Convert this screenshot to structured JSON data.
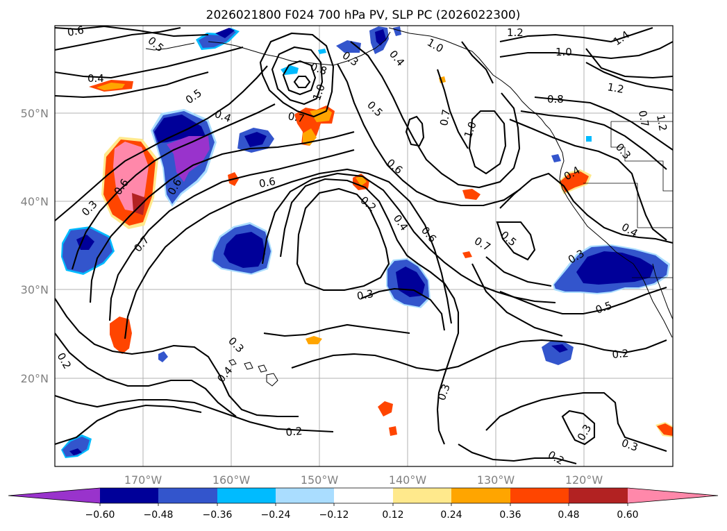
{
  "title": "2026021800 F024 700 hPa PV, SLP PC (2026022300)",
  "lon_labels": [
    "170°W",
    "160°W",
    "150°W",
    "140°W",
    "130°W",
    "120°W"
  ],
  "lat_labels": [
    "50°N",
    "40°N",
    "30°N",
    "20°N"
  ],
  "colorbar": {
    "tick_labels": [
      "−0.60",
      "−0.48",
      "−0.36",
      "−0.24",
      "−0.12",
      "0.12",
      "0.24",
      "0.36",
      "0.48",
      "0.60"
    ],
    "colors": [
      "#9933cc",
      "#000099",
      "#3355cc",
      "#00bbff",
      "#aaddff",
      "#ffffff",
      "#ffe98c",
      "#ffa500",
      "#ff4500",
      "#b22222",
      "#ff88aa"
    ]
  },
  "contour_labels": [
    {
      "id": "c1",
      "text": "0.6"
    },
    {
      "id": "c2",
      "text": "0.5"
    },
    {
      "id": "c3",
      "text": "0.4"
    },
    {
      "id": "c4",
      "text": "0.5"
    },
    {
      "id": "c5",
      "text": "0.4"
    },
    {
      "id": "c6",
      "text": "0.8"
    },
    {
      "id": "c7",
      "text": "1.0"
    },
    {
      "id": "c8",
      "text": "0.7"
    },
    {
      "id": "c9",
      "text": "0.3"
    },
    {
      "id": "c10",
      "text": "0.4"
    },
    {
      "id": "c11",
      "text": "0.5"
    },
    {
      "id": "c12",
      "text": "1.2"
    },
    {
      "id": "c13",
      "text": "1.0"
    },
    {
      "id": "c14",
      "text": "1.0"
    },
    {
      "id": "c15",
      "text": "1.4"
    },
    {
      "id": "c16",
      "text": "1.2"
    },
    {
      "id": "c17",
      "text": "0.8"
    },
    {
      "id": "c18",
      "text": "0.7"
    },
    {
      "id": "c19",
      "text": "1.0"
    },
    {
      "id": "c20",
      "text": "0.6"
    },
    {
      "id": "c21",
      "text": "0.6"
    },
    {
      "id": "c22",
      "text": "0.2"
    },
    {
      "id": "c23",
      "text": "0.4"
    },
    {
      "id": "c24",
      "text": "0.6"
    },
    {
      "id": "c25",
      "text": "0.7"
    },
    {
      "id": "c26",
      "text": "0.5"
    },
    {
      "id": "c27",
      "text": "0.3"
    },
    {
      "id": "c28",
      "text": "0.3"
    },
    {
      "id": "c29",
      "text": "0.4"
    },
    {
      "id": "c30",
      "text": "0.2"
    },
    {
      "id": "c31",
      "text": "0.3"
    },
    {
      "id": "c32",
      "text": "0.2"
    },
    {
      "id": "c33",
      "text": "0.3"
    },
    {
      "id": "c34",
      "text": "0.2"
    },
    {
      "id": "c35",
      "text": "0.3"
    },
    {
      "id": "c36",
      "text": "0.5"
    },
    {
      "id": "c37",
      "text": "0.2"
    },
    {
      "id": "c38",
      "text": "0.4"
    },
    {
      "id": "c39",
      "text": "0.3"
    },
    {
      "id": "c40",
      "text": "0.7"
    },
    {
      "id": "c41",
      "text": "0.6"
    },
    {
      "id": "c42",
      "text": "0.6"
    },
    {
      "id": "c43",
      "text": "0.3"
    },
    {
      "id": "c44",
      "text": "0.7"
    },
    {
      "id": "c45",
      "text": "1.2"
    },
    {
      "id": "c46",
      "text": "0.3"
    },
    {
      "id": "c47",
      "text": "0.4"
    }
  ]
}
